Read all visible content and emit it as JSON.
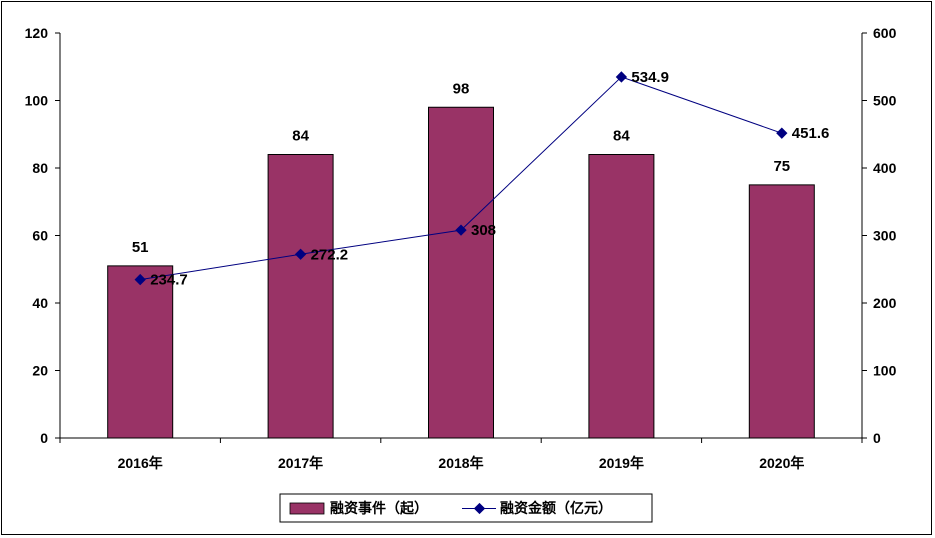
{
  "chart_data": {
    "type": "bar+line",
    "categories": [
      "2016年",
      "2017年",
      "2018年",
      "2019年",
      "2020年"
    ],
    "series": [
      {
        "name": "融资事件（起）",
        "type": "bar",
        "axis": "left",
        "color": "#993366",
        "values": [
          51,
          84,
          98,
          84,
          75
        ]
      },
      {
        "name": "融资金额（亿元）",
        "type": "line",
        "axis": "right",
        "color": "#000080",
        "values": [
          234.7,
          272.2,
          308,
          534.9,
          451.6
        ]
      }
    ],
    "data_labels_bar": [
      "51",
      "84",
      "98",
      "84",
      "75"
    ],
    "data_labels_line": [
      "234.7",
      "272.2",
      "308",
      "534.9",
      "451.6"
    ],
    "y_left": {
      "min": 0,
      "max": 120,
      "ticks": [
        "0",
        "20",
        "40",
        "60",
        "80",
        "100",
        "120"
      ]
    },
    "y_right": {
      "min": 0,
      "max": 600,
      "ticks": [
        "0",
        "100",
        "200",
        "300",
        "400",
        "500",
        "600"
      ]
    },
    "grid": false,
    "legend": "bottom"
  }
}
